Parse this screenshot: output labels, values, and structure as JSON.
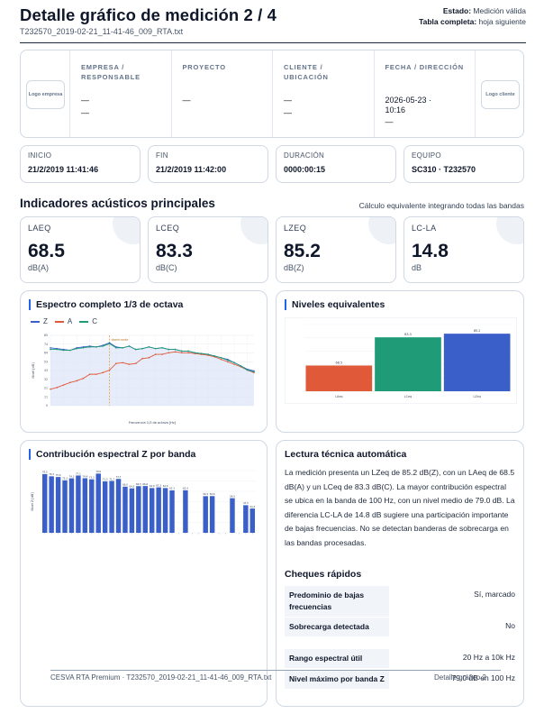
{
  "header": {
    "title": "Detalle gráfico de medición 2 / 4",
    "filename": "T232570_2019-02-21_11-41-46_009_RTA.txt",
    "status_label": "Estado:",
    "status_value": "Medición válida",
    "table_label": "Tabla completa:",
    "table_value": "hoja siguiente"
  },
  "identity": {
    "logo_left": "Logo empresa",
    "logo_right": "Logo cliente",
    "cells": [
      {
        "label": "EMPRESA / RESPONSABLE",
        "value1": "—",
        "value2": "—"
      },
      {
        "label": "PROYECTO",
        "value1": "—",
        "value2": ""
      },
      {
        "label": "CLIENTE / UBICACIÓN",
        "value1": "—",
        "value2": "—"
      },
      {
        "label": "FECHA / DIRECCIÓN",
        "value1": "2026-05-23 · 10:16",
        "value2": "—"
      }
    ]
  },
  "info": [
    {
      "label": "INICIO",
      "value": "21/2/2019 11:41:46"
    },
    {
      "label": "FIN",
      "value": "21/2/2019 11:42:00"
    },
    {
      "label": "DURACIÓN",
      "value": "0000:00:15"
    },
    {
      "label": "EQUIPO",
      "value": "SC310 · T232570"
    }
  ],
  "indicators": {
    "title": "Indicadores acústicos principales",
    "note": "Cálculo equivalente integrando todas las bandas",
    "items": [
      {
        "label": "LAEQ",
        "value": "68.5",
        "unit": "dB(A)"
      },
      {
        "label": "LCEQ",
        "value": "83.3",
        "unit": "dB(C)"
      },
      {
        "label": "LZEQ",
        "value": "85.2",
        "unit": "dB(Z)"
      },
      {
        "label": "LC-LA",
        "value": "14.8",
        "unit": "dB"
      }
    ]
  },
  "spectrum_panel": {
    "title": "Espectro completo 1/3 de octava",
    "legend": [
      "Z",
      "A",
      "C"
    ],
    "marker_label": "dominante"
  },
  "equiv_panel": {
    "title": "Niveles equivalentes"
  },
  "contrib_panel": {
    "title": "Contribución espectral Z por banda"
  },
  "reading": {
    "title": "Lectura técnica automática",
    "text": "La medición presenta un LZeq de 85.2 dB(Z), con un LAeq de 68.5 dB(A) y un LCeq de 83.3 dB(C). La mayor contribución espectral se ubica en la banda de 100 Hz, con un nivel medio de 79.0 dB. La diferencia LC-LA de 14.8 dB sugiere una participación importante de bajas frecuencias. No se detectan banderas de sobrecarga en las bandas procesadas.",
    "checks_title": "Cheques rápidos",
    "checks": [
      {
        "key": "Predominio de bajas frecuencias",
        "value": "Sí, marcado"
      },
      {
        "key": "Sobrecarga detectada",
        "value": "No"
      },
      {
        "key": "Rango espectral útil",
        "value": "20 Hz a 10k Hz"
      },
      {
        "key": "Nivel máximo por banda Z",
        "value": "79.0 dB en 100 Hz"
      }
    ]
  },
  "footer": {
    "left": "CESVA RTA Premium · T232570_2019-02-21_11-41-46_009_RTA.txt",
    "right": "Detalle gráfico 2"
  },
  "colors": {
    "z": "#3b5fc9",
    "a": "#e05a3a",
    "c": "#1f9b77",
    "accent": "#2563eb"
  },
  "chart_data": [
    {
      "type": "line",
      "title": "Espectro completo 1/3 de octava",
      "xlabel": "Frecuencia 1/3 de octava [Hz]",
      "ylabel": "Nivel [dB]",
      "ylim": [
        0,
        85
      ],
      "series": [
        {
          "name": "Z",
          "values": [
            70,
            69,
            68,
            67,
            70,
            71,
            72,
            71,
            73,
            76,
            71,
            70,
            72,
            68,
            69,
            71,
            69,
            70,
            68,
            68,
            66,
            66,
            64,
            63,
            62,
            60,
            58,
            56,
            52,
            48,
            44,
            42
          ]
        },
        {
          "name": "A",
          "values": [
            20,
            22,
            25,
            28,
            30,
            33,
            38,
            38,
            40,
            43,
            51,
            52,
            50,
            51,
            57,
            58,
            62,
            62,
            64,
            65,
            64,
            64,
            63,
            62,
            61,
            59,
            56,
            53,
            50,
            47,
            43,
            40
          ]
        },
        {
          "name": "C",
          "values": [
            68,
            68,
            67,
            67,
            69,
            70,
            71,
            71,
            72,
            75,
            70,
            70,
            72,
            68,
            69,
            71,
            69,
            70,
            68,
            68,
            66,
            66,
            64,
            63,
            62,
            60,
            58,
            55,
            52,
            48,
            43,
            41
          ]
        }
      ]
    },
    {
      "type": "bar",
      "title": "Niveles equivalentes",
      "categories": [
        "LAeq",
        "LCeq",
        "LZeq"
      ],
      "values": [
        68.5,
        83.3,
        85.2
      ],
      "data_labels": [
        "68.5",
        "83.3",
        "85.2"
      ],
      "ylim": [
        55,
        90
      ]
    },
    {
      "type": "bar",
      "title": "Contribución espectral Z por banda",
      "ylabel": "Nivel Z [dB]",
      "values": [
        78.5,
        76.3,
        75.6,
        72.3,
        74.3,
        77.1,
        74.4,
        73.3,
        79.0,
        71.3,
        71.7,
        73.7,
        66.0,
        64.3,
        66.5,
        66.6,
        64.6,
        65.3,
        64.6,
        62.3,
        null,
        62.4,
        null,
        null,
        56.5,
        56.6,
        null,
        null,
        54.5,
        null,
        47.5,
        44.2
      ],
      "data_labels": [
        "78.5",
        "76.3",
        "75.6",
        "72.3",
        "74.3",
        "77.1",
        "74.4",
        "73.3",
        "79.0",
        "71.3",
        "71.7",
        "73.7",
        "66.0",
        "64.3",
        "66.5",
        "66.6",
        "64.6",
        "65.3",
        "64.6",
        "62.3",
        "",
        "62.4",
        "",
        "",
        "56.5",
        "56.6",
        "",
        "",
        "54.5",
        "",
        "47.5",
        "44.2"
      ],
      "ylim": [
        20,
        82
      ]
    }
  ]
}
